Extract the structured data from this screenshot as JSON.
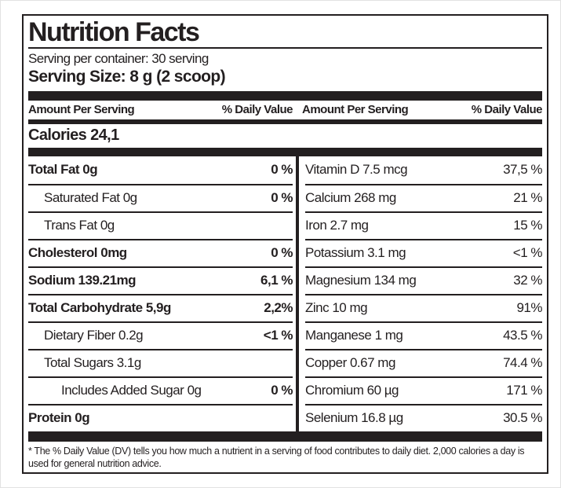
{
  "label": {
    "title": "Nutrition Facts",
    "serving_per_container": "Serving per container: 30 serving",
    "serving_size": "Serving Size: 8 g (2 scoop)",
    "header": {
      "amount": "Amount Per Serving",
      "daily_value": "% Daily Value"
    },
    "calories": "Calories 24,1",
    "left_rows": [
      {
        "label": "Total Fat 0g",
        "value": "0 %"
      },
      {
        "label": "Saturated Fat 0g",
        "value": "0 %"
      },
      {
        "label": "Trans Fat 0g",
        "value": ""
      },
      {
        "label": "Cholesterol 0mg",
        "value": "0 %"
      },
      {
        "label": "Sodium 139.21mg",
        "value": "6,1 %"
      },
      {
        "label": "Total Carbohydrate 5,9g",
        "value": "2,2%"
      },
      {
        "label": "Dietary Fiber 0.2g",
        "value": "<1 %"
      },
      {
        "label": "Total Sugars 3.1g",
        "value": ""
      },
      {
        "label": "Includes Added Sugar 0g",
        "value": "0 %"
      },
      {
        "label": "Protein 0g",
        "value": ""
      }
    ],
    "right_rows": [
      {
        "label": "Vitamin D 7.5 mcg",
        "value": "37,5 %"
      },
      {
        "label": "Calcium 268 mg",
        "value": "21 %"
      },
      {
        "label": "Iron 2.7 mg",
        "value": "15 %"
      },
      {
        "label": "Potassium 3.1 mg",
        "value": "<1 %"
      },
      {
        "label": "Magnesium 134 mg",
        "value": "32 %"
      },
      {
        "label": "Zinc 10 mg",
        "value": "91%"
      },
      {
        "label": "Manganese 1 mg",
        "value": "43.5 %"
      },
      {
        "label": "Copper 0.67 mg",
        "value": "74.4 %"
      },
      {
        "label": "Chromium 60 µg",
        "value": "171 %"
      },
      {
        "label": "Selenium 16.8 µg",
        "value": "30.5 %"
      }
    ],
    "footnote": "* The % Daily Value (DV) tells you how much a nutrient in a serving of food contributes to daily diet. 2,000 calories a day is used for general nutrition advice.",
    "colors": {
      "ink": "#231f20"
    }
  }
}
